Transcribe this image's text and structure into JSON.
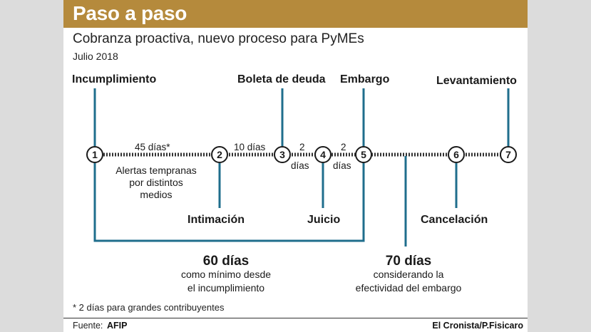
{
  "header": {
    "title": "Paso a paso",
    "subtitle": "Cobranza proactiva, nuevo proceso para PyMEs",
    "date": "Julio 2018"
  },
  "colors": {
    "accent_band": "#b58a3c",
    "connector": "#1f6e8c",
    "text": "#1a1a1a"
  },
  "steps": [
    "1",
    "2",
    "3",
    "4",
    "5",
    "6",
    "7"
  ],
  "events": {
    "e1": "Incumplimiento",
    "e2": "Intimación",
    "e3": "Boleta de deuda",
    "e4": "Juicio",
    "e5": "Embargo",
    "e6": "Cancelación",
    "e7": "Levantamiento"
  },
  "intervals": {
    "i12": "45 días*",
    "i23": "10 días",
    "i34_a": "2",
    "i34_b": "días",
    "i45_a": "2",
    "i45_b": "días"
  },
  "alerts": [
    "Alertas tempranas",
    "por distintos",
    "medios"
  ],
  "totals": {
    "t60_value": "60 días",
    "t60_line1": "como mínimo desde",
    "t60_line2": "el incumplimiento",
    "t70_value": "70 días",
    "t70_line1": "considerando la",
    "t70_line2": "efectividad del embargo"
  },
  "footnote": "* 2 días para grandes contribuyentes",
  "source": {
    "label": "Fuente:",
    "value": "AFIP"
  },
  "credit": "El Cronista/P.Fisicaro"
}
